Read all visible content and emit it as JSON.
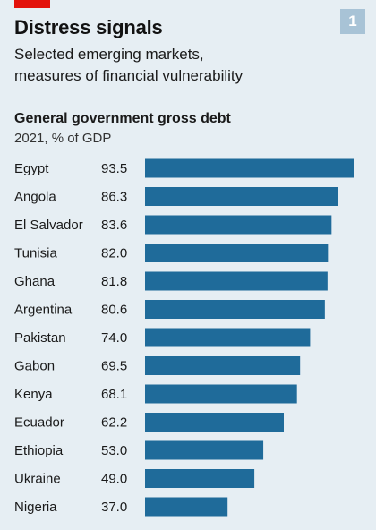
{
  "header": {
    "title": "Distress signals",
    "subtitle_line1": "Selected emerging markets,",
    "subtitle_line2": "measures of financial vulnerability",
    "page_number": "1"
  },
  "colors": {
    "background": "#e6eef3",
    "bar": "#1f6b9a",
    "accent_red": "#e3120b",
    "badge": "#a8c3d6"
  },
  "chart_data": {
    "type": "bar",
    "orientation": "horizontal",
    "title": "General government gross debt",
    "subtitle": "2021, % of GDP",
    "categories": [
      "Egypt",
      "Angola",
      "El Salvador",
      "Tunisia",
      "Ghana",
      "Argentina",
      "Pakistan",
      "Gabon",
      "Kenya",
      "Ecuador",
      "Ethiopia",
      "Ukraine",
      "Nigeria"
    ],
    "values": [
      93.5,
      86.3,
      83.6,
      82.0,
      81.8,
      80.6,
      74.0,
      69.5,
      68.1,
      62.2,
      53.0,
      49.0,
      37.0
    ],
    "value_labels": [
      "93.5",
      "86.3",
      "83.6",
      "82.0",
      "81.8",
      "80.6",
      "74.0",
      "69.5",
      "68.1",
      "62.2",
      "53.0",
      "49.0",
      "37.0"
    ],
    "xlim": [
      0,
      93.5
    ],
    "grid": false,
    "legend": "none"
  }
}
